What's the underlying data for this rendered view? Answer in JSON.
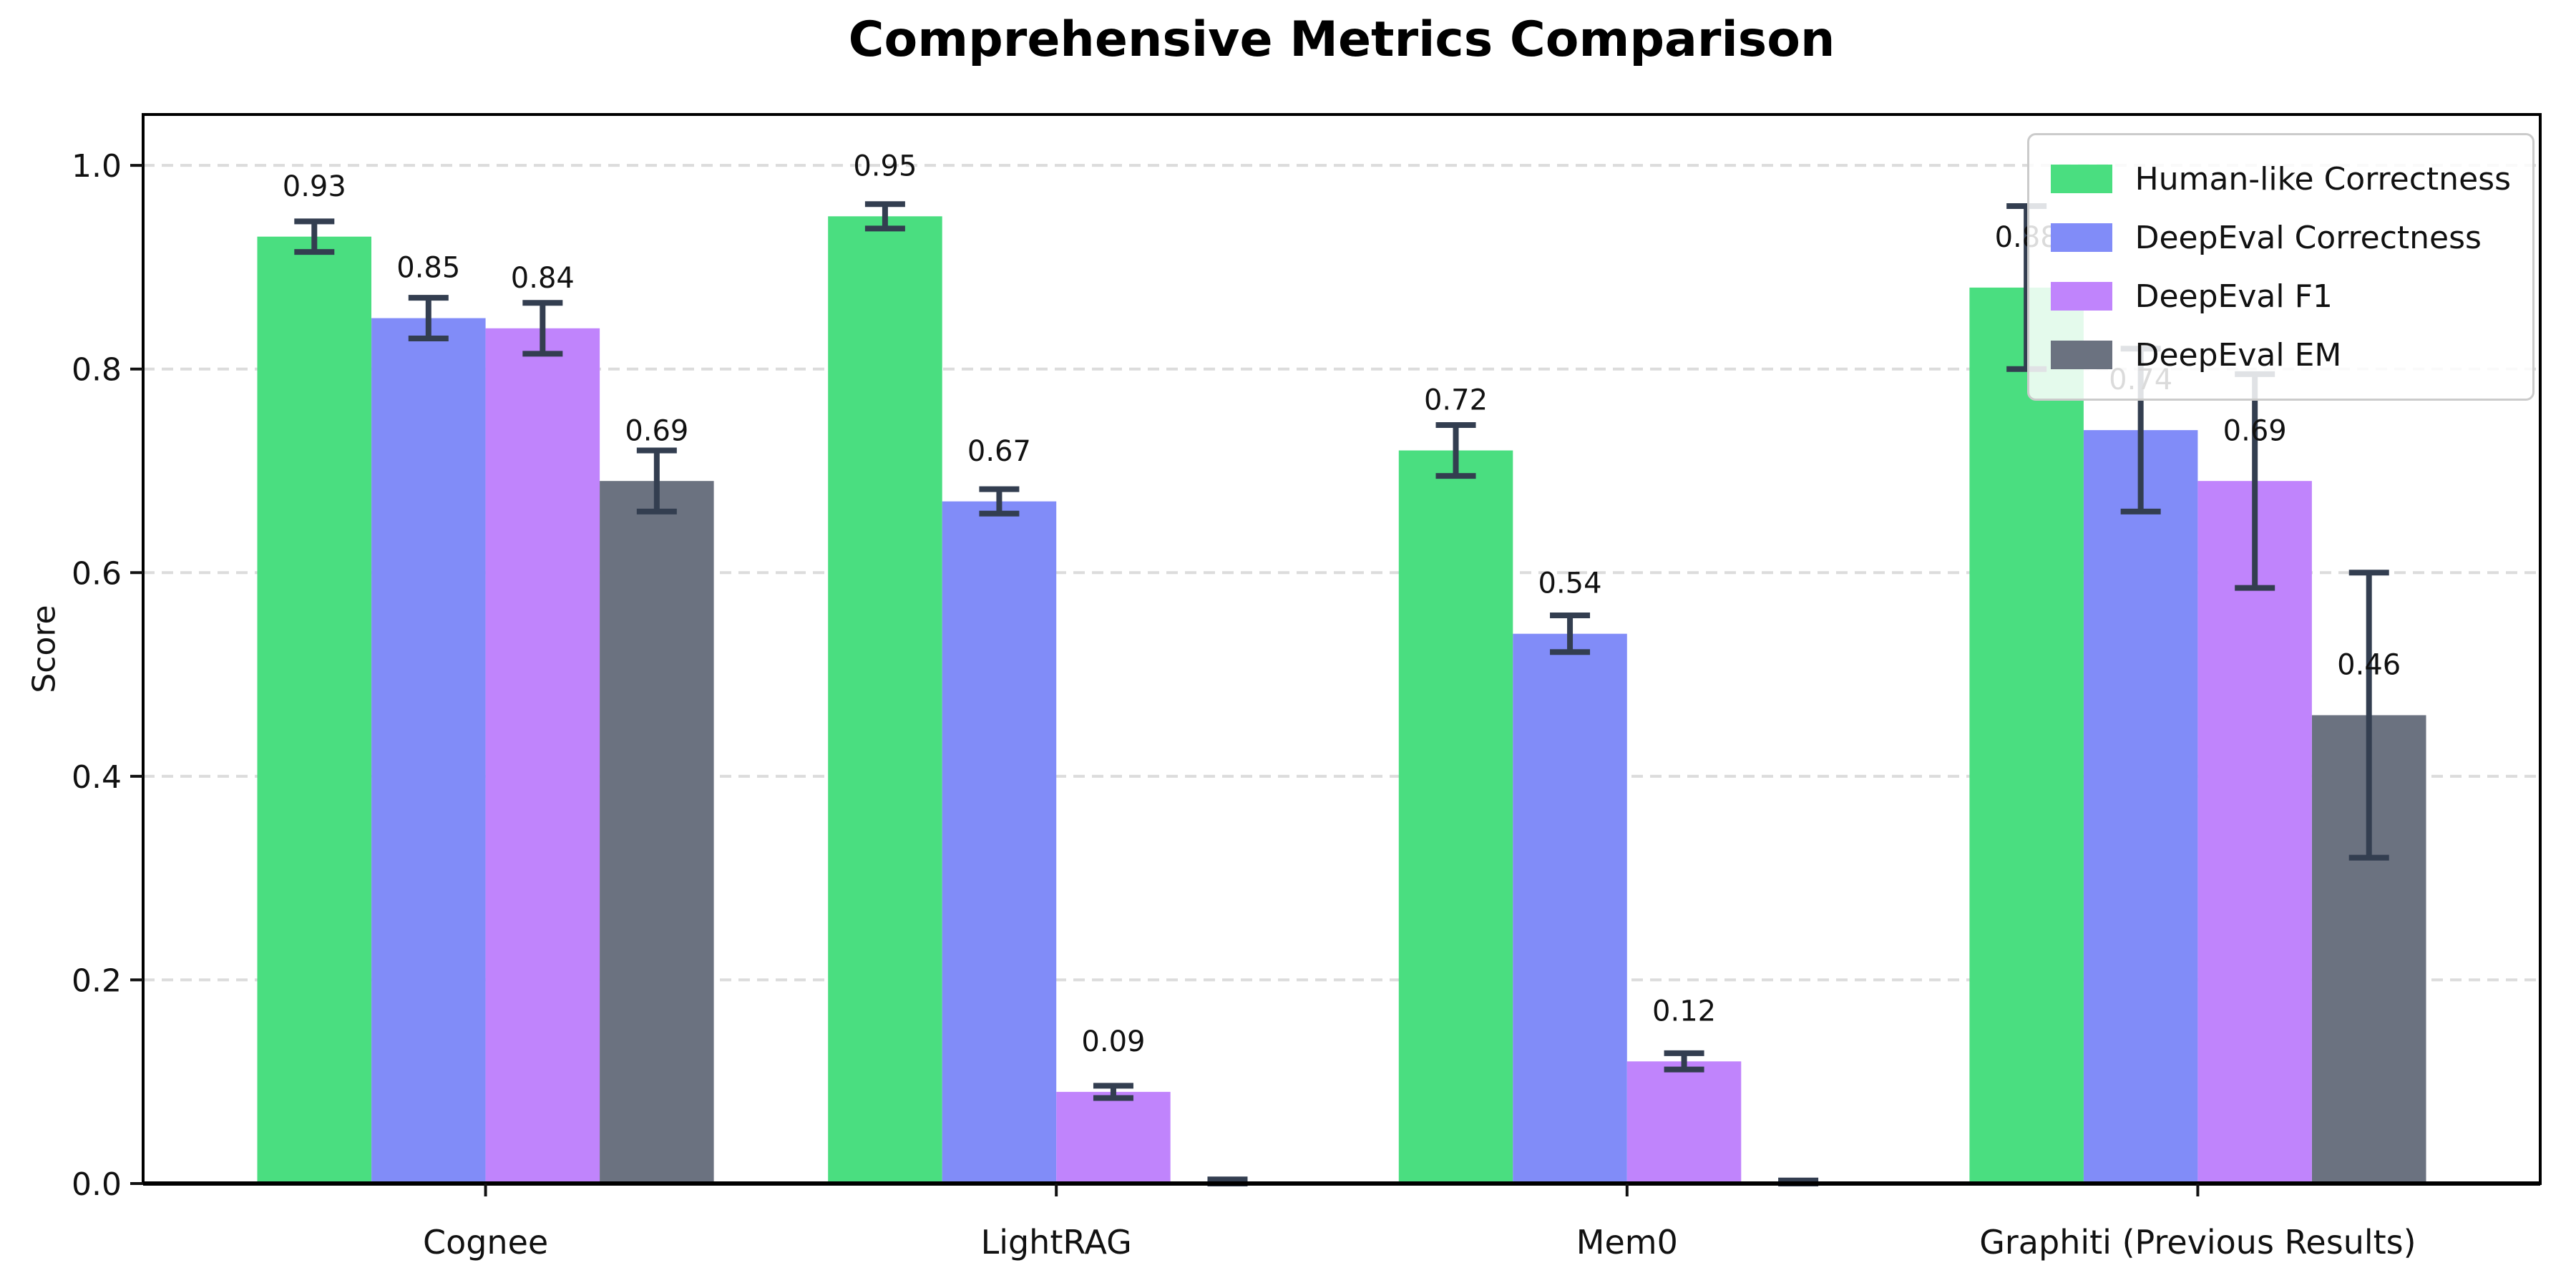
{
  "figure": {
    "background": "#ffffff"
  },
  "chart_data": {
    "type": "bar",
    "title": "Comprehensive Metrics Comparison",
    "ylabel": "Score",
    "categories": [
      "Cognee",
      "LightRAG",
      "Mem0",
      "Graphiti (Previous Results)"
    ],
    "series": [
      {
        "name": "Human-like Correctness",
        "color": "#4ade80",
        "values": [
          0.93,
          0.95,
          0.72,
          0.88
        ],
        "errors": [
          0.015,
          0.012,
          0.025,
          0.08
        ],
        "bar_labels": [
          "0.93",
          "0.95",
          "0.72",
          "0.88"
        ]
      },
      {
        "name": "DeepEval Correctness",
        "color": "#818cf8",
        "values": [
          0.85,
          0.67,
          0.54,
          0.74
        ],
        "errors": [
          0.02,
          0.012,
          0.018,
          0.08
        ],
        "bar_labels": [
          "0.85",
          "0.67",
          "0.54",
          "0.74"
        ]
      },
      {
        "name": "DeepEval F1",
        "color": "#c084fc",
        "values": [
          0.84,
          0.09,
          0.12,
          0.69
        ],
        "errors": [
          0.025,
          0.006,
          0.008,
          0.105
        ],
        "bar_labels": [
          "0.84",
          "0.09",
          "0.12",
          "0.69"
        ]
      },
      {
        "name": "DeepEval EM",
        "color": "#6b7280",
        "values": [
          0.69,
          0.0,
          0.0,
          0.46
        ],
        "errors": [
          0.03,
          0.004,
          0.003,
          0.14
        ],
        "bar_labels": [
          "0.69",
          "",
          "",
          "0.46"
        ]
      }
    ],
    "ylim": [
      0,
      1.05
    ],
    "yticks": [
      "0.0",
      "0.2",
      "0.4",
      "0.6",
      "0.8",
      "1.0"
    ],
    "grid": {
      "axis": "y",
      "style": "dashed",
      "color": "#dcdcdc"
    },
    "error_bar_color": "#333e50",
    "axis_color": "#000000",
    "legend": {
      "position": "upper right"
    }
  }
}
